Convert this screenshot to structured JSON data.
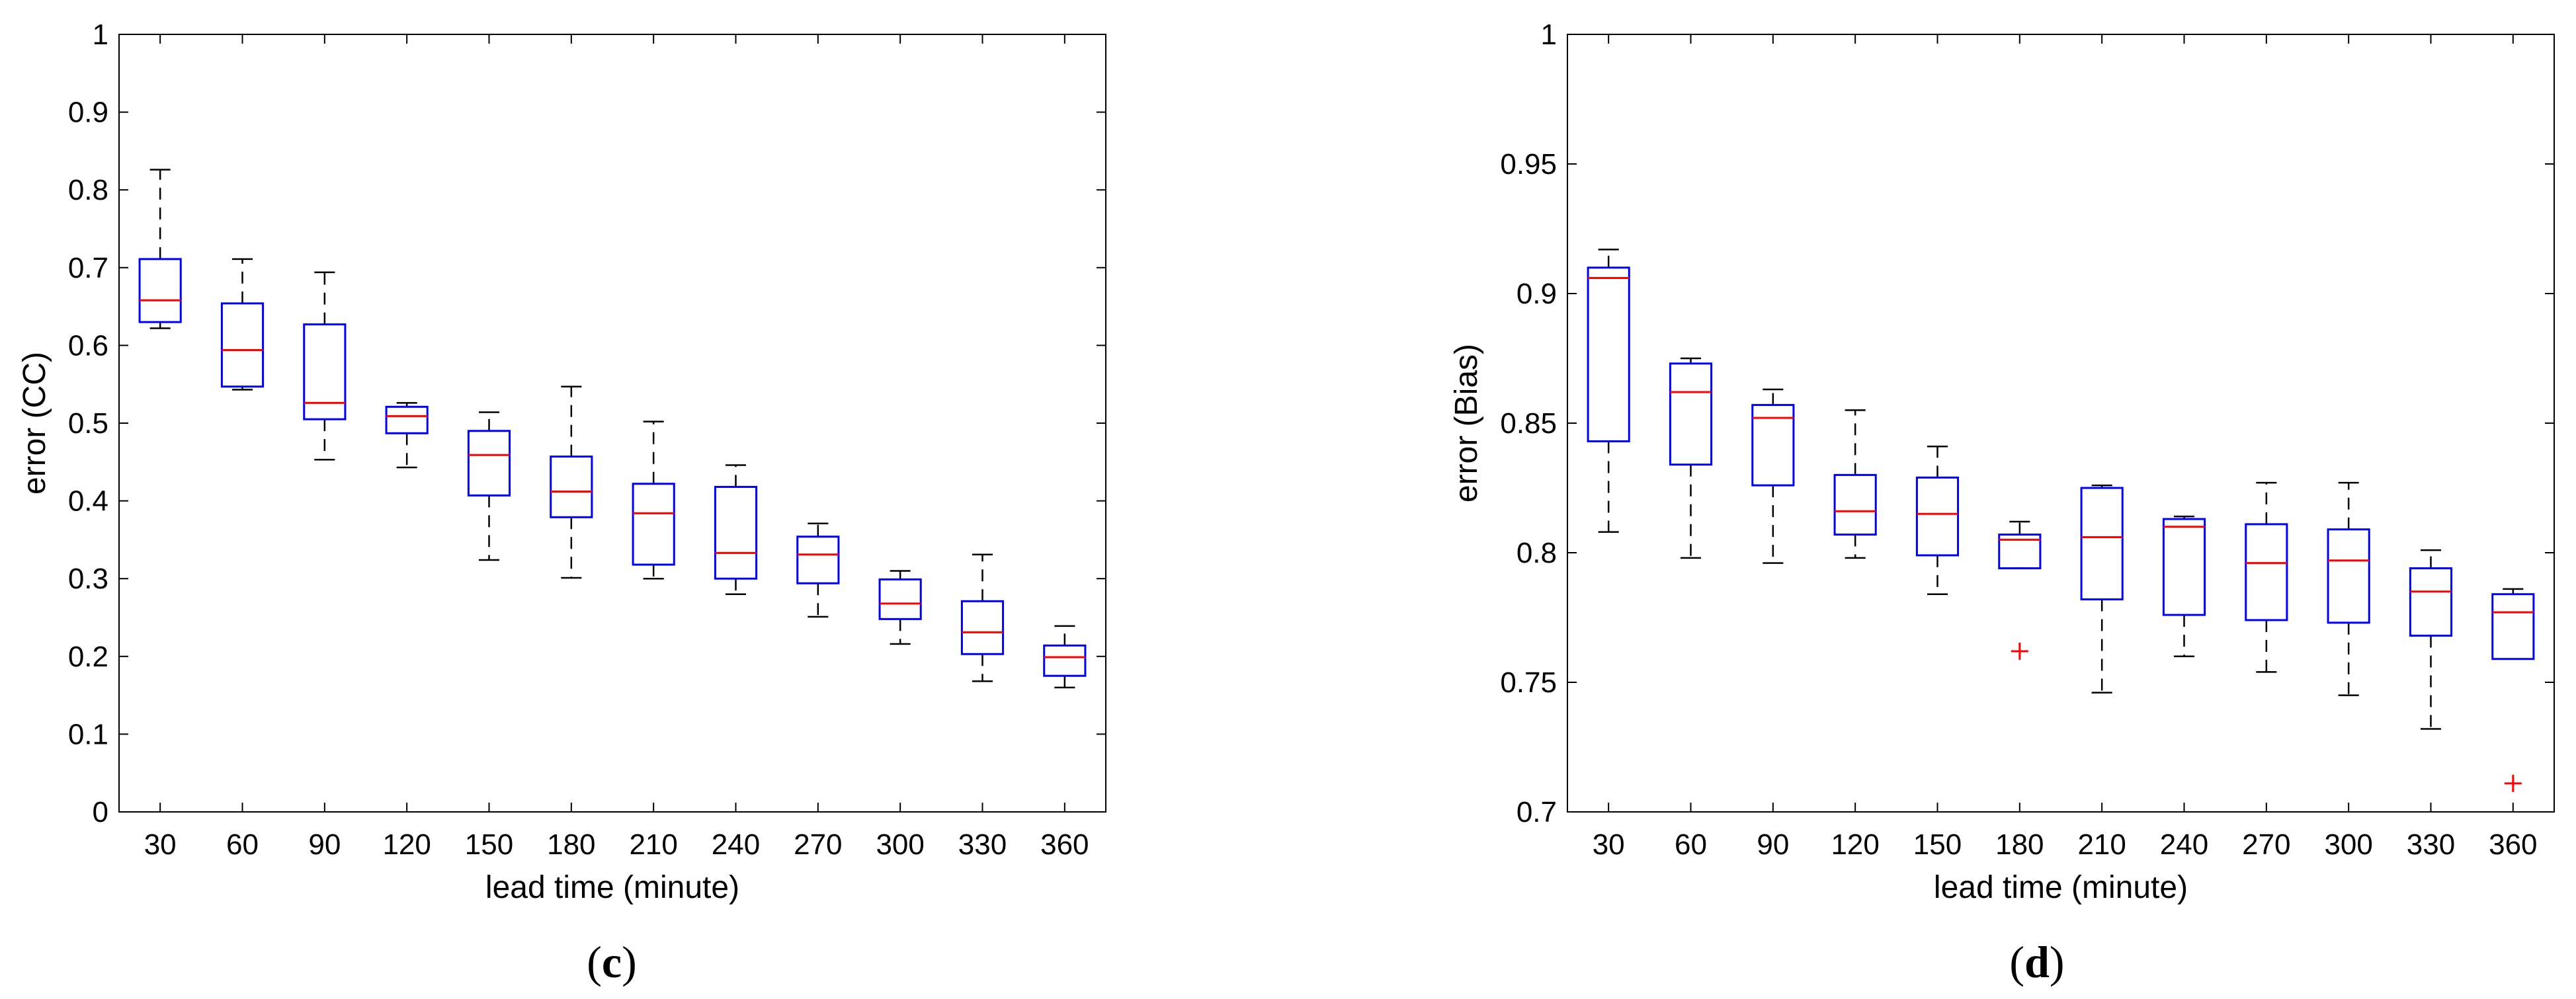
{
  "chart_data": [
    {
      "type": "boxplot",
      "panel_label": {
        "open": "(",
        "letter": "c",
        "close": ")"
      },
      "xlabel": "lead time (minute)",
      "ylabel": "error (CC)",
      "categories": [
        "30",
        "60",
        "90",
        "120",
        "150",
        "180",
        "210",
        "240",
        "270",
        "300",
        "330",
        "360"
      ],
      "ylim": [
        0,
        1
      ],
      "yticks": [
        0,
        0.1,
        0.2,
        0.3,
        0.4,
        0.5,
        0.6,
        0.7,
        0.8,
        0.9,
        1
      ],
      "ytick_labels": [
        "0",
        "0.1",
        "0.2",
        "0.3",
        "0.4",
        "0.5",
        "0.6",
        "0.7",
        "0.8",
        "0.9",
        "1"
      ],
      "box_color": "#0000ff",
      "median_color": "#ff0000",
      "whisker_color": "#000000",
      "outlier_color": "#ff0000",
      "boxes": [
        {
          "whisker_low": 0.622,
          "q1": 0.63,
          "median": 0.658,
          "q3": 0.711,
          "whisker_high": 0.826,
          "outliers": []
        },
        {
          "whisker_low": 0.543,
          "q1": 0.547,
          "median": 0.594,
          "q3": 0.654,
          "whisker_high": 0.711,
          "outliers": []
        },
        {
          "whisker_low": 0.453,
          "q1": 0.505,
          "median": 0.526,
          "q3": 0.627,
          "whisker_high": 0.694,
          "outliers": []
        },
        {
          "whisker_low": 0.443,
          "q1": 0.487,
          "median": 0.509,
          "q3": 0.521,
          "whisker_high": 0.526,
          "outliers": []
        },
        {
          "whisker_low": 0.324,
          "q1": 0.407,
          "median": 0.459,
          "q3": 0.49,
          "whisker_high": 0.514,
          "outliers": []
        },
        {
          "whisker_low": 0.301,
          "q1": 0.379,
          "median": 0.412,
          "q3": 0.457,
          "whisker_high": 0.547,
          "outliers": []
        },
        {
          "whisker_low": 0.3,
          "q1": 0.318,
          "median": 0.384,
          "q3": 0.422,
          "whisker_high": 0.502,
          "outliers": []
        },
        {
          "whisker_low": 0.28,
          "q1": 0.3,
          "median": 0.333,
          "q3": 0.418,
          "whisker_high": 0.446,
          "outliers": []
        },
        {
          "whisker_low": 0.251,
          "q1": 0.294,
          "median": 0.331,
          "q3": 0.354,
          "whisker_high": 0.371,
          "outliers": []
        },
        {
          "whisker_low": 0.216,
          "q1": 0.248,
          "median": 0.268,
          "q3": 0.299,
          "whisker_high": 0.31,
          "outliers": []
        },
        {
          "whisker_low": 0.168,
          "q1": 0.203,
          "median": 0.231,
          "q3": 0.271,
          "whisker_high": 0.331,
          "outliers": []
        },
        {
          "whisker_low": 0.16,
          "q1": 0.175,
          "median": 0.199,
          "q3": 0.214,
          "whisker_high": 0.239,
          "outliers": []
        }
      ]
    },
    {
      "type": "boxplot",
      "panel_label": {
        "open": "(",
        "letter": "d",
        "close": ")"
      },
      "xlabel": "lead time (minute)",
      "ylabel": "error (Bias)",
      "categories": [
        "30",
        "60",
        "90",
        "120",
        "150",
        "180",
        "210",
        "240",
        "270",
        "300",
        "330",
        "360"
      ],
      "ylim": [
        0.7,
        1
      ],
      "yticks": [
        0.7,
        0.75,
        0.8,
        0.85,
        0.9,
        0.95,
        1
      ],
      "ytick_labels": [
        "0.7",
        "0.75",
        "0.8",
        "0.85",
        "0.9",
        "0.95",
        "1"
      ],
      "box_color": "#0000ff",
      "median_color": "#ff0000",
      "whisker_color": "#000000",
      "outlier_color": "#ff0000",
      "boxes": [
        {
          "whisker_low": 0.808,
          "q1": 0.843,
          "median": 0.906,
          "q3": 0.91,
          "whisker_high": 0.917,
          "outliers": []
        },
        {
          "whisker_low": 0.798,
          "q1": 0.834,
          "median": 0.862,
          "q3": 0.873,
          "whisker_high": 0.875,
          "outliers": []
        },
        {
          "whisker_low": 0.796,
          "q1": 0.826,
          "median": 0.852,
          "q3": 0.857,
          "whisker_high": 0.863,
          "outliers": []
        },
        {
          "whisker_low": 0.798,
          "q1": 0.807,
          "median": 0.816,
          "q3": 0.83,
          "whisker_high": 0.855,
          "outliers": []
        },
        {
          "whisker_low": 0.784,
          "q1": 0.799,
          "median": 0.815,
          "q3": 0.829,
          "whisker_high": 0.841,
          "outliers": []
        },
        {
          "whisker_low": 0.794,
          "q1": 0.794,
          "median": 0.805,
          "q3": 0.807,
          "whisker_high": 0.812,
          "outliers": [
            0.762
          ]
        },
        {
          "whisker_low": 0.746,
          "q1": 0.782,
          "median": 0.806,
          "q3": 0.825,
          "whisker_high": 0.826,
          "outliers": []
        },
        {
          "whisker_low": 0.76,
          "q1": 0.776,
          "median": 0.81,
          "q3": 0.813,
          "whisker_high": 0.814,
          "outliers": []
        },
        {
          "whisker_low": 0.754,
          "q1": 0.774,
          "median": 0.796,
          "q3": 0.811,
          "whisker_high": 0.827,
          "outliers": []
        },
        {
          "whisker_low": 0.745,
          "q1": 0.773,
          "median": 0.797,
          "q3": 0.809,
          "whisker_high": 0.827,
          "outliers": []
        },
        {
          "whisker_low": 0.732,
          "q1": 0.768,
          "median": 0.785,
          "q3": 0.794,
          "whisker_high": 0.801,
          "outliers": []
        },
        {
          "whisker_low": 0.759,
          "q1": 0.759,
          "median": 0.777,
          "q3": 0.784,
          "whisker_high": 0.786,
          "outliers": [
            0.711
          ]
        }
      ]
    }
  ]
}
